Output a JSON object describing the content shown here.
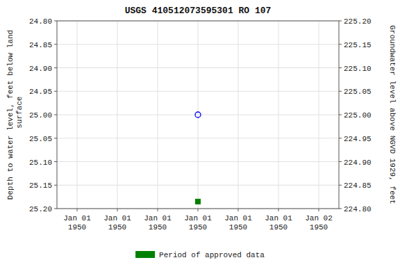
{
  "chart_data": {
    "type": "scatter",
    "title": "USGS 410512073595301 RO 107",
    "ylabel": "Depth to water level, feet below land\n surface",
    "y2label": "Groundwater level above NGVD 1929, feet",
    "categories": [
      "Jan 01\n1950",
      "Jan 01\n1950",
      "Jan 01\n1950",
      "Jan 01\n1950",
      "Jan 01\n1950",
      "Jan 01\n1950",
      "Jan 02\n1950"
    ],
    "series": [
      {
        "color": "blue",
        "marker": "circle-open",
        "values": [
          null,
          null,
          null,
          25.0,
          null,
          null,
          null
        ]
      },
      {
        "name": "Period of approved data",
        "color": "green",
        "marker": "square",
        "values": [
          null,
          null,
          null,
          25.185,
          null,
          null,
          null
        ]
      }
    ],
    "ylim": [
      25.2,
      24.8
    ],
    "yticks": [
      {
        "value": 24.8,
        "label": "24.80"
      },
      {
        "value": 24.85,
        "label": "24.85"
      },
      {
        "value": 24.9,
        "label": "24.90"
      },
      {
        "value": 24.95,
        "label": "24.95"
      },
      {
        "value": 25.0,
        "label": "25.00"
      },
      {
        "value": 25.05,
        "label": "25.05"
      },
      {
        "value": 25.1,
        "label": "25.10"
      },
      {
        "value": 25.15,
        "label": "25.15"
      },
      {
        "value": 25.2,
        "label": "25.20"
      }
    ],
    "y2lim": [
      224.8,
      225.2
    ],
    "y2ticks": [
      {
        "value": 225.2,
        "label": "225.20"
      },
      {
        "value": 225.15,
        "label": "225.15"
      },
      {
        "value": 225.1,
        "label": "225.10"
      },
      {
        "value": 225.05,
        "label": "225.05"
      },
      {
        "value": 225.0,
        "label": "225.00"
      },
      {
        "value": 224.95,
        "label": "224.95"
      },
      {
        "value": 224.9,
        "label": "224.90"
      },
      {
        "value": 224.85,
        "label": "224.85"
      },
      {
        "value": 224.8,
        "label": "224.80"
      }
    ],
    "grid": true,
    "legend": "bottom"
  }
}
